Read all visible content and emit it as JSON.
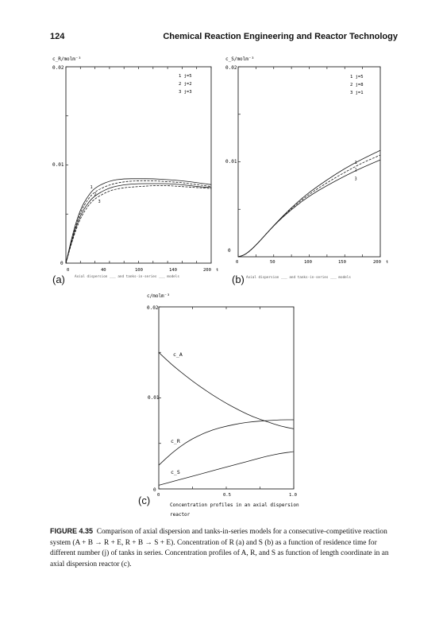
{
  "header": {
    "page_number": "124",
    "running_title": "Chemical Reaction Engineering and Reactor Technology"
  },
  "panels": [
    {
      "letter": "(a)",
      "ylabel": "c_R/molm⁻³",
      "y_top_tick": "0.02",
      "y_mid_tick": "0.01",
      "y_zero": "0",
      "x_ticks": [
        "0",
        "40",
        "100",
        "140",
        "200"
      ],
      "x_unit": "t",
      "legend": [
        "1  j=5",
        "2  j=2",
        "3  j=3"
      ],
      "bottom_caption": "Axial dispersion ___  and tanks-in-series ___ models"
    },
    {
      "letter": "(b)",
      "ylabel": "c_S/molm⁻³",
      "y_top_tick": "0.02",
      "y_mid_tick": "0.01",
      "y_zero": "0",
      "x_ticks": [
        "0",
        "50",
        "100",
        "150",
        "200"
      ],
      "x_unit": "t",
      "legend": [
        "1  j=5",
        "2  j=8",
        "3  j=1"
      ],
      "bottom_caption": "Axial dispersion ___  and tanks-in-series ___ models"
    },
    {
      "letter": "(c)",
      "ylabel": "c/molm⁻³",
      "y_top_tick": "0.02",
      "y_mid_tick": "0.01",
      "y_zero": "0",
      "x_ticks": [
        "0",
        "0.5",
        "1.0"
      ],
      "curve_labels": [
        "c_A",
        "c_R",
        "c_S"
      ],
      "bottom_caption_line1": "Concentration profiles in an axial dispersion",
      "bottom_caption_line2": "reactor"
    }
  ],
  "chart_data": [
    {
      "type": "line",
      "xlabel": "t",
      "ylabel": "c_R/molm⁻³",
      "xlim": [
        0,
        200
      ],
      "ylim": [
        0,
        0.02
      ],
      "series": [
        {
          "name": "1",
          "x": [
            0,
            10,
            20,
            30,
            40,
            60,
            80,
            100,
            120,
            140,
            160,
            180,
            200
          ],
          "y": [
            0,
            0.0032,
            0.0055,
            0.0068,
            0.0077,
            0.0084,
            0.0086,
            0.0086,
            0.0086,
            0.0085,
            0.0084,
            0.0082,
            0.008
          ]
        },
        {
          "name": "2",
          "x": [
            0,
            10,
            20,
            30,
            40,
            60,
            80,
            100,
            120,
            140,
            160,
            180,
            200
          ],
          "y": [
            0,
            0.003,
            0.0052,
            0.0065,
            0.0073,
            0.008,
            0.0083,
            0.0084,
            0.0084,
            0.0083,
            0.0082,
            0.008,
            0.0078
          ]
        },
        {
          "name": "3",
          "x": [
            0,
            10,
            20,
            30,
            40,
            60,
            80,
            100,
            120,
            140,
            160,
            180,
            200
          ],
          "y": [
            0,
            0.0028,
            0.0049,
            0.0061,
            0.0069,
            0.0077,
            0.008,
            0.0081,
            0.0081,
            0.0081,
            0.008,
            0.0078,
            0.0077
          ]
        },
        {
          "x": [
            0,
            10,
            20,
            30,
            40,
            60,
            80,
            100,
            120,
            140,
            160,
            180,
            200
          ],
          "y": [
            0,
            0.0026,
            0.0046,
            0.0058,
            0.0066,
            0.0074,
            0.0077,
            0.0078,
            0.0079,
            0.0079,
            0.0078,
            0.0077,
            0.0076
          ]
        }
      ]
    },
    {
      "type": "line",
      "xlabel": "t",
      "ylabel": "c_S/molm⁻³",
      "xlim": [
        0,
        200
      ],
      "ylim": [
        0,
        0.02
      ],
      "series": [
        {
          "name": "1",
          "x": [
            0,
            10,
            25,
            50,
            75,
            100,
            125,
            150,
            175,
            200
          ],
          "y": [
            0,
            0.0002,
            0.0012,
            0.0033,
            0.0052,
            0.0068,
            0.0081,
            0.0093,
            0.0103,
            0.0112
          ]
        },
        {
          "name": "2",
          "x": [
            0,
            10,
            25,
            50,
            75,
            100,
            125,
            150,
            175,
            200
          ],
          "y": [
            0,
            0.0002,
            0.0012,
            0.0033,
            0.0051,
            0.0066,
            0.0078,
            0.0089,
            0.0099,
            0.0107
          ]
        },
        {
          "name": "3",
          "x": [
            0,
            10,
            25,
            50,
            75,
            100,
            125,
            150,
            175,
            200
          ],
          "y": [
            0,
            0.0002,
            0.0012,
            0.0033,
            0.005,
            0.0064,
            0.0075,
            0.0085,
            0.0094,
            0.0102
          ]
        }
      ]
    },
    {
      "type": "line",
      "xlabel": "",
      "ylabel": "c/molm⁻³",
      "xlim": [
        0,
        1.0
      ],
      "ylim": [
        0,
        0.02
      ],
      "series": [
        {
          "name": "c_A",
          "x": [
            0,
            0.1,
            0.2,
            0.3,
            0.4,
            0.5,
            0.6,
            0.7,
            0.8,
            0.9,
            1.0
          ],
          "y": [
            0.015,
            0.0136,
            0.0124,
            0.0113,
            0.0103,
            0.0094,
            0.0086,
            0.0079,
            0.0074,
            0.0069,
            0.0066
          ]
        },
        {
          "name": "c_R",
          "x": [
            0,
            0.1,
            0.2,
            0.3,
            0.4,
            0.5,
            0.6,
            0.7,
            0.8,
            0.9,
            1.0
          ],
          "y": [
            0.0026,
            0.004,
            0.0051,
            0.0059,
            0.0065,
            0.0069,
            0.0072,
            0.0074,
            0.0075,
            0.0076,
            0.0076
          ]
        },
        {
          "name": "c_S",
          "x": [
            0,
            0.1,
            0.2,
            0.3,
            0.4,
            0.5,
            0.6,
            0.7,
            0.8,
            0.9,
            1.0
          ],
          "y": [
            0.0004,
            0.0008,
            0.0012,
            0.0016,
            0.002,
            0.0024,
            0.0028,
            0.0032,
            0.0036,
            0.0039,
            0.0041
          ]
        }
      ]
    }
  ],
  "caption": {
    "label": "FIGURE 4.35",
    "text": "Comparison of axial dispersion and tanks-in-series models for a consecutive-competitive reaction system (A + B → R + E, R + B → S + E). Concentration of R (a) and S (b) as a function of residence time for different number (j) of tanks in series. Concentration profiles of A, R, and S as function of length coordinate in an axial dispersion reactor (c)."
  }
}
